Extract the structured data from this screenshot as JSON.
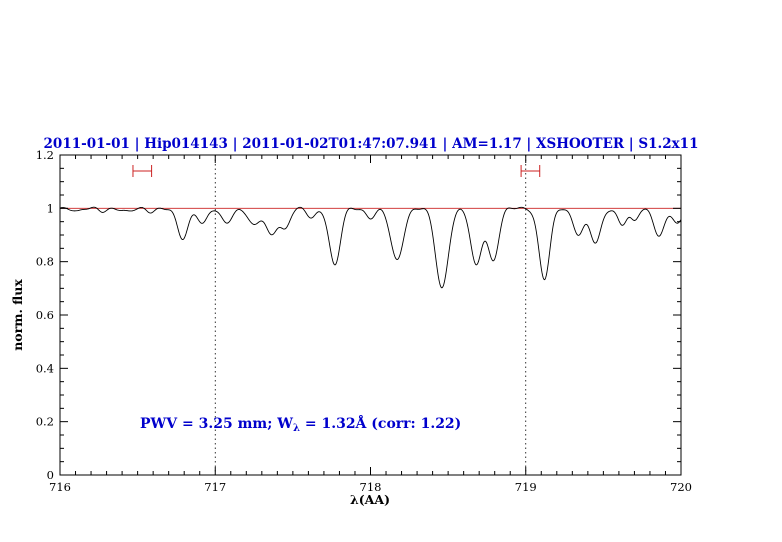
{
  "colors": {
    "blue": "#0000cc",
    "red": "#cc2222",
    "black": "#000000",
    "background": "#ffffff"
  },
  "title": {
    "text": "2011-01-01 | Hip014143 | 2011-01-02T01:47:07.941 | AM=1.17 | XSHOOTER | S1.2x11",
    "fields": {
      "night": "2011-01-01",
      "target": "Hip014143",
      "obs_time": "2011-01-02T01:47:07.941",
      "airmass": "AM=1.17",
      "instrument": "XSHOOTER",
      "slit": "S1.2x11"
    }
  },
  "annotation": {
    "part1": "PWV = 3.25 mm; W",
    "sub": "λ",
    "part2": " = 1.32Å (corr: 1.22)",
    "pwv_mm": 3.25,
    "w_lambda_angstrom": 1.32,
    "correction": 1.22
  },
  "chart_data": {
    "type": "line",
    "title": "2011-01-01 | Hip014143 | 2011-01-02T01:47:07.941 | AM=1.17 | XSHOOTER | S1.2x11",
    "xlabel": "λ(AA)",
    "ylabel": "norm. flux",
    "xlim": [
      716,
      720
    ],
    "ylim": [
      0,
      1.2
    ],
    "x_ticks": [
      716,
      717,
      718,
      719,
      720
    ],
    "x_tick_labels": [
      "716",
      "717",
      "718",
      "719",
      "720"
    ],
    "x_minor_step": 0.1,
    "y_ticks": [
      0,
      0.2,
      0.4,
      0.6,
      0.8,
      1,
      1.2
    ],
    "y_tick_labels": [
      "0",
      "0.2",
      "0.4",
      "0.6",
      "0.8",
      "1",
      "1.2"
    ],
    "y_minor_step": 0.05,
    "grid": false,
    "legend": "none",
    "continuum_level": 1.0,
    "vlines": [
      717,
      719
    ],
    "range_markers": [
      {
        "x_start": 716.47,
        "x_end": 716.59,
        "y": 1.14
      },
      {
        "x_start": 718.97,
        "x_end": 719.09,
        "y": 1.14
      }
    ],
    "sample_step": 0.004,
    "series": [
      {
        "name": "normalized telluric spectrum",
        "color": "#000000",
        "model": "continuum minus gaussian absorption lines",
        "absorption_lines": [
          {
            "center": 716.12,
            "depth": 0.01,
            "sigma": 0.025
          },
          {
            "center": 716.27,
            "depth": 0.012,
            "sigma": 0.025
          },
          {
            "center": 716.44,
            "depth": 0.014,
            "sigma": 0.03
          },
          {
            "center": 716.58,
            "depth": 0.012,
            "sigma": 0.025
          },
          {
            "center": 716.79,
            "depth": 0.115,
            "sigma": 0.035
          },
          {
            "center": 716.92,
            "depth": 0.055,
            "sigma": 0.03
          },
          {
            "center": 717.07,
            "depth": 0.055,
            "sigma": 0.035
          },
          {
            "center": 717.25,
            "depth": 0.065,
            "sigma": 0.035
          },
          {
            "center": 717.36,
            "depth": 0.1,
            "sigma": 0.035
          },
          {
            "center": 717.45,
            "depth": 0.075,
            "sigma": 0.03
          },
          {
            "center": 717.62,
            "depth": 0.035,
            "sigma": 0.03
          },
          {
            "center": 717.77,
            "depth": 0.215,
            "sigma": 0.035
          },
          {
            "center": 718.0,
            "depth": 0.035,
            "sigma": 0.03
          },
          {
            "center": 718.17,
            "depth": 0.195,
            "sigma": 0.04
          },
          {
            "center": 718.46,
            "depth": 0.3,
            "sigma": 0.04
          },
          {
            "center": 718.68,
            "depth": 0.215,
            "sigma": 0.035
          },
          {
            "center": 718.79,
            "depth": 0.195,
            "sigma": 0.035
          },
          {
            "center": 719.12,
            "depth": 0.265,
            "sigma": 0.035
          },
          {
            "center": 719.34,
            "depth": 0.095,
            "sigma": 0.035
          },
          {
            "center": 719.45,
            "depth": 0.13,
            "sigma": 0.035
          },
          {
            "center": 719.62,
            "depth": 0.06,
            "sigma": 0.028
          },
          {
            "center": 719.7,
            "depth": 0.05,
            "sigma": 0.025
          },
          {
            "center": 719.86,
            "depth": 0.1,
            "sigma": 0.035
          },
          {
            "center": 719.98,
            "depth": 0.06,
            "sigma": 0.03
          }
        ]
      }
    ]
  }
}
